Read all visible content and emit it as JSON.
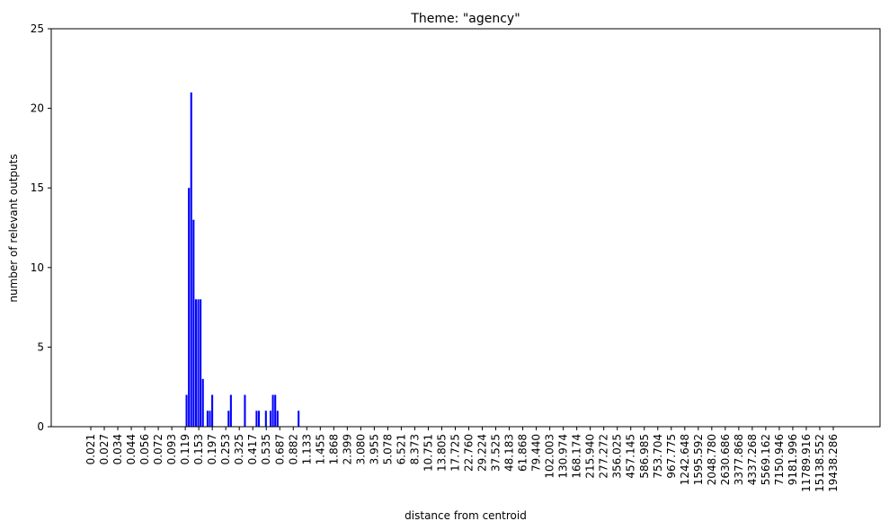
{
  "chart_data": {
    "type": "bar",
    "title": "Theme: \"agency\"",
    "xlabel": "distance from centroid",
    "ylabel": "number of relevant outputs",
    "ylim": [
      0,
      25
    ],
    "yticks": [
      0,
      5,
      10,
      15,
      20,
      25
    ],
    "bar_color": "#0000ff",
    "grid": false,
    "tick_labels": [
      "0.021",
      "0.027",
      "0.034",
      "0.044",
      "0.056",
      "0.072",
      "0.093",
      "0.119",
      "0.153",
      "0.197",
      "0.253",
      "0.325",
      "0.417",
      "0.535",
      "0.687",
      "0.882",
      "1.133",
      "1.455",
      "1.868",
      "2.399",
      "3.080",
      "3.955",
      "5.078",
      "6.521",
      "8.373",
      "10.751",
      "13.805",
      "17.725",
      "22.760",
      "29.224",
      "37.525",
      "48.183",
      "61.868",
      "79.440",
      "102.003",
      "130.974",
      "168.174",
      "215.940",
      "277.272",
      "356.025",
      "457.145",
      "586.985",
      "753.704",
      "967.775",
      "1242.648",
      "1595.592",
      "2048.780",
      "2630.686",
      "3377.868",
      "4337.268",
      "5569.162",
      "7150.946",
      "9181.996",
      "11789.916",
      "15138.552",
      "19438.286"
    ],
    "values": [
      0,
      0,
      0,
      0,
      0,
      0,
      0,
      0,
      0,
      0,
      0,
      0,
      0,
      0,
      0,
      0,
      0,
      0,
      0,
      0,
      0,
      0,
      0,
      0,
      0,
      0,
      0,
      0,
      0,
      0,
      0,
      0,
      0,
      0,
      0,
      0,
      0,
      0,
      0,
      0,
      0,
      0,
      2,
      15,
      21,
      13,
      8,
      8,
      8,
      3,
      0,
      1,
      1,
      2,
      0,
      0,
      0,
      0,
      0,
      0,
      1,
      2,
      0,
      0,
      0,
      0,
      0,
      2,
      0,
      0,
      0,
      0,
      1,
      1,
      0,
      0,
      1,
      0,
      1,
      2,
      2,
      1,
      0,
      0,
      0,
      0,
      0,
      0,
      0,
      0,
      1,
      0,
      0,
      0,
      0,
      0,
      0,
      0,
      0,
      0,
      0,
      0,
      0,
      0,
      0,
      0,
      0,
      0,
      0,
      0,
      0,
      0,
      0,
      0,
      0,
      0,
      0,
      0,
      0,
      0,
      0,
      0,
      0,
      0,
      0,
      0,
      0,
      0,
      0,
      0,
      0,
      0,
      0,
      0,
      0,
      0,
      0,
      0,
      0,
      0,
      0,
      0,
      0,
      0,
      0,
      0,
      0,
      0,
      0,
      0,
      0,
      0,
      0,
      0,
      0,
      0,
      0,
      0,
      0,
      0,
      0,
      0,
      0,
      0,
      0,
      0,
      0,
      0,
      0,
      0,
      0,
      0,
      0,
      0,
      0,
      0,
      0,
      0,
      0,
      0,
      0,
      0,
      0,
      0,
      0,
      0,
      0,
      0,
      0,
      0,
      0,
      0,
      0,
      0,
      0,
      0,
      0,
      0,
      0,
      0,
      0,
      0,
      0,
      0,
      0,
      0,
      0,
      0,
      0,
      0,
      0,
      0,
      0,
      0,
      0,
      0,
      0,
      0,
      0,
      0,
      0,
      0,
      0,
      0,
      0,
      0,
      0,
      0,
      0,
      0,
      0,
      0,
      0,
      0,
      0,
      0,
      0,
      0,
      0,
      0,
      0,
      0,
      0,
      0,
      0,
      0,
      0,
      0,
      0,
      0,
      0,
      0,
      0,
      0,
      0,
      0,
      0,
      0,
      0,
      0,
      0,
      0,
      0,
      0,
      0,
      0,
      0,
      0,
      0,
      0,
      0,
      0,
      0,
      0,
      0,
      0,
      0,
      0,
      0,
      0,
      0,
      0,
      0,
      0,
      0,
      0,
      0,
      0,
      0,
      0,
      0,
      0,
      0,
      0,
      0,
      0,
      0,
      0,
      0,
      0,
      0,
      0,
      0,
      0,
      0,
      0,
      0,
      0,
      0,
      0,
      0,
      0,
      0,
      0,
      0,
      0,
      0,
      0,
      0,
      0,
      0,
      0,
      0
    ]
  }
}
